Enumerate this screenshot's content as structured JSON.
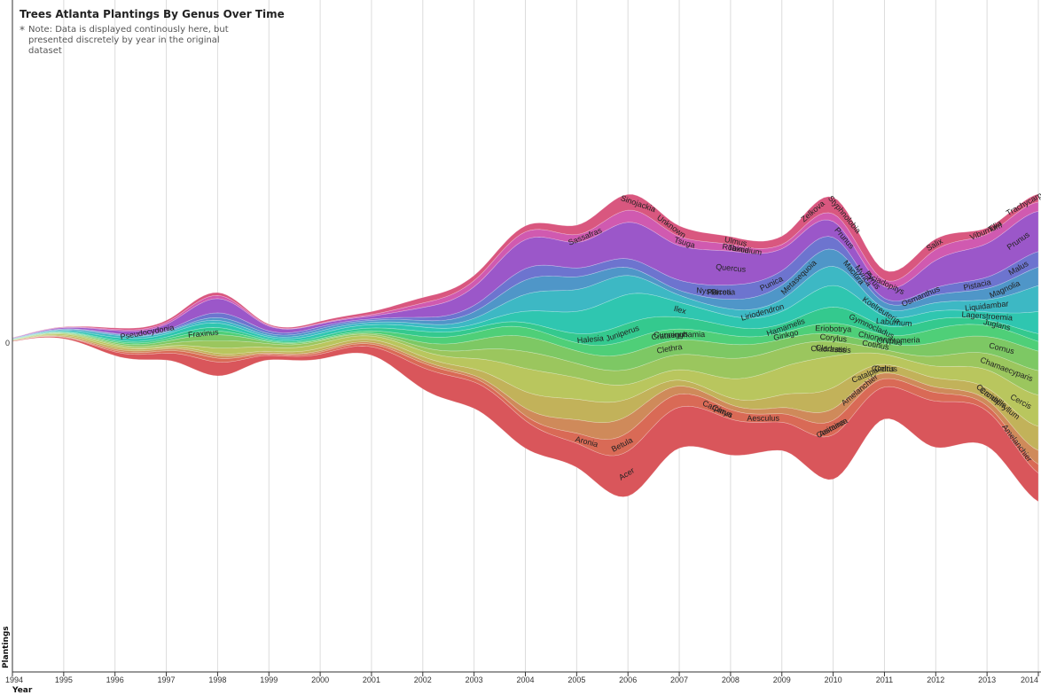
{
  "title": "Trees Atlanta Plantings By Genus Over Time",
  "note_marker": "*",
  "note": "Note: Data is displayed continously here, but presented discretely by year in the original dataset",
  "chart_data": {
    "type": "area",
    "subtype": "streamgraph",
    "xlabel": "Year",
    "ylabel": "Plantings",
    "y_tick_labels": [
      "0"
    ],
    "x": [
      1994,
      1995,
      1996,
      1997,
      1998,
      1999,
      2000,
      2001,
      2002,
      2003,
      2004,
      2005,
      2006,
      2007,
      2008,
      2009,
      2010,
      2011,
      2012,
      2013,
      2014
    ],
    "x_tick_labels": [
      "1994",
      "1995",
      "1996",
      "1997",
      "1998",
      "1999",
      "2000",
      "2001",
      "2002",
      "2003",
      "2004",
      "2005",
      "2006",
      "2007",
      "2008",
      "2009",
      "2010",
      "2011",
      "2012",
      "2013",
      "2014"
    ],
    "total_relative_width": [
      0.02,
      0.06,
      0.14,
      0.2,
      0.42,
      0.18,
      0.19,
      0.22,
      0.46,
      0.67,
      1.12,
      1.22,
      1.52,
      1.12,
      1.1,
      1.08,
      1.42,
      0.75,
      1.05,
      1.1,
      1.55
    ],
    "bands": [
      {
        "color": "#d9565b",
        "share": 0.18
      },
      {
        "color": "#d96a56",
        "share": 0.05
      },
      {
        "color": "#cf8a5a",
        "share": 0.04
      },
      {
        "color": "#c2b25a",
        "share": 0.06
      },
      {
        "color": "#b9c65e",
        "share": 0.09
      },
      {
        "color": "#9bc65e",
        "share": 0.07
      },
      {
        "color": "#7dc864",
        "share": 0.06
      },
      {
        "color": "#4fcf78",
        "share": 0.05
      },
      {
        "color": "#34c98e",
        "share": 0.05
      },
      {
        "color": "#2fc6b0",
        "share": 0.07
      },
      {
        "color": "#3db8c4",
        "share": 0.06
      },
      {
        "color": "#4f96c8",
        "share": 0.05
      },
      {
        "color": "#6d74cf",
        "share": 0.05
      },
      {
        "color": "#9b57c9",
        "share": 0.13
      },
      {
        "color": "#d05ab0",
        "share": 0.04
      },
      {
        "color": "#d9577f",
        "share": 0.05
      }
    ],
    "genus_labels": [
      {
        "text": "Pseudocydonia",
        "x": 1996.6,
        "band": 13
      },
      {
        "text": "Fraxinus",
        "x": 1997.7,
        "band": 7
      },
      {
        "text": "Acer",
        "x": 2006.0,
        "band": 0
      },
      {
        "text": "Betula",
        "x": 2005.9,
        "band": 1
      },
      {
        "text": "Aronia",
        "x": 2005.2,
        "band": 1
      },
      {
        "text": "Carya",
        "x": 2007.8,
        "band": 1
      },
      {
        "text": "Carpinus",
        "x": 2007.7,
        "band": 1
      },
      {
        "text": "Aesculus",
        "x": 2008.6,
        "band": 1
      },
      {
        "text": "Castanea",
        "x": 2010.0,
        "band": 1
      },
      {
        "text": "Asimina",
        "x": 2010.0,
        "band": 1
      },
      {
        "text": "Amelanchier",
        "x": 2010.5,
        "band": 2
      },
      {
        "text": "Catalpa",
        "x": 2010.6,
        "band": 3
      },
      {
        "text": "Amelanchier",
        "x": 2013.5,
        "band": 1
      },
      {
        "text": "Cercidiphyllum",
        "x": 2013.2,
        "band": 3
      },
      {
        "text": "Camellia",
        "x": 2013.1,
        "band": 3
      },
      {
        "text": "Cercis",
        "x": 2013.6,
        "band": 4
      },
      {
        "text": "Chamaecyparis",
        "x": 2013.4,
        "band": 5
      },
      {
        "text": "Cladrastis",
        "x": 2009.9,
        "band": 5
      },
      {
        "text": "Cotinus",
        "x": 2010.8,
        "band": 6
      },
      {
        "text": "Cornus",
        "x": 2013.3,
        "band": 6
      },
      {
        "text": "Celtis",
        "x": 2011.0,
        "band": 3
      },
      {
        "text": "Cedrus",
        "x": 2011.0,
        "band": 3
      },
      {
        "text": "Cladrastis",
        "x": 2010.0,
        "band": 5
      },
      {
        "text": "Cryptomeria",
        "x": 2011.3,
        "band": 7
      },
      {
        "text": "Chionanthus",
        "x": 2010.9,
        "band": 7
      },
      {
        "text": "Crataegus",
        "x": 2006.8,
        "band": 7
      },
      {
        "text": "Cunninghamia",
        "x": 2007.0,
        "band": 7
      },
      {
        "text": "Clethra",
        "x": 2006.8,
        "band": 6
      },
      {
        "text": "Eriobotrya",
        "x": 2010.0,
        "band": 7
      },
      {
        "text": "Corylus",
        "x": 2010.0,
        "band": 6
      },
      {
        "text": "Ginkgo",
        "x": 2009.1,
        "band": 7
      },
      {
        "text": "Hamamelis",
        "x": 2009.1,
        "band": 8
      },
      {
        "text": "Halesia",
        "x": 2005.3,
        "band": 8
      },
      {
        "text": "Juniperus",
        "x": 2005.9,
        "band": 8
      },
      {
        "text": "Ilex",
        "x": 2007.0,
        "band": 9
      },
      {
        "text": "Gymnocladus",
        "x": 2010.7,
        "band": 8
      },
      {
        "text": "Laburnum",
        "x": 2011.2,
        "band": 9
      },
      {
        "text": "Koelreuteria",
        "x": 2010.9,
        "band": 10
      },
      {
        "text": "Juglans",
        "x": 2013.2,
        "band": 8
      },
      {
        "text": "Lagerstroemia",
        "x": 2013.0,
        "band": 9
      },
      {
        "text": "Liquidambar",
        "x": 2013.0,
        "band": 10
      },
      {
        "text": "Liriodendron",
        "x": 2008.6,
        "band": 10
      },
      {
        "text": "Magnolia",
        "x": 2013.4,
        "band": 11
      },
      {
        "text": "Metasequoia",
        "x": 2009.4,
        "band": 11
      },
      {
        "text": "Maclura",
        "x": 2010.4,
        "band": 11
      },
      {
        "text": "Myrica",
        "x": 2010.5,
        "band": 12
      },
      {
        "text": "Osmanthus",
        "x": 2011.7,
        "band": 12
      },
      {
        "text": "Nyssa",
        "x": 2007.5,
        "band": 12
      },
      {
        "text": "Parrotia",
        "x": 2007.8,
        "band": 12
      },
      {
        "text": "Picea",
        "x": 2007.8,
        "band": 12
      },
      {
        "text": "Pistacia",
        "x": 2012.8,
        "band": 12
      },
      {
        "text": "Malus",
        "x": 2013.6,
        "band": 12
      },
      {
        "text": "Punica",
        "x": 2008.8,
        "band": 12
      },
      {
        "text": "Pyrus",
        "x": 2010.7,
        "band": 13
      },
      {
        "text": "Prunus",
        "x": 2010.2,
        "band": 13
      },
      {
        "text": "Prunus",
        "x": 2013.6,
        "band": 13
      },
      {
        "text": "Quercus",
        "x": 2008.0,
        "band": 13
      },
      {
        "text": "Robinia",
        "x": 2008.1,
        "band": 14
      },
      {
        "text": "Taxodium",
        "x": 2008.3,
        "band": 14
      },
      {
        "text": "Tsuga",
        "x": 2007.1,
        "band": 14
      },
      {
        "text": "Sassafras",
        "x": 2005.2,
        "band": 14
      },
      {
        "text": "Sinojackia",
        "x": 2006.2,
        "band": 15
      },
      {
        "text": "Unknown",
        "x": 2006.8,
        "band": 15
      },
      {
        "text": "Ulmus",
        "x": 2008.1,
        "band": 15
      },
      {
        "text": "Styphnolobia",
        "x": 2010.2,
        "band": 15
      },
      {
        "text": "Zelkova",
        "x": 2009.6,
        "band": 15
      },
      {
        "text": "Sciadopitys",
        "x": 2011.0,
        "band": 14
      },
      {
        "text": "Salix",
        "x": 2012.0,
        "band": 15
      },
      {
        "text": "Tilia",
        "x": 2013.2,
        "band": 15
      },
      {
        "text": "Viburnum",
        "x": 2013.0,
        "band": 15
      },
      {
        "text": "Trachycarpus",
        "x": 2013.8,
        "band": 15
      }
    ]
  }
}
